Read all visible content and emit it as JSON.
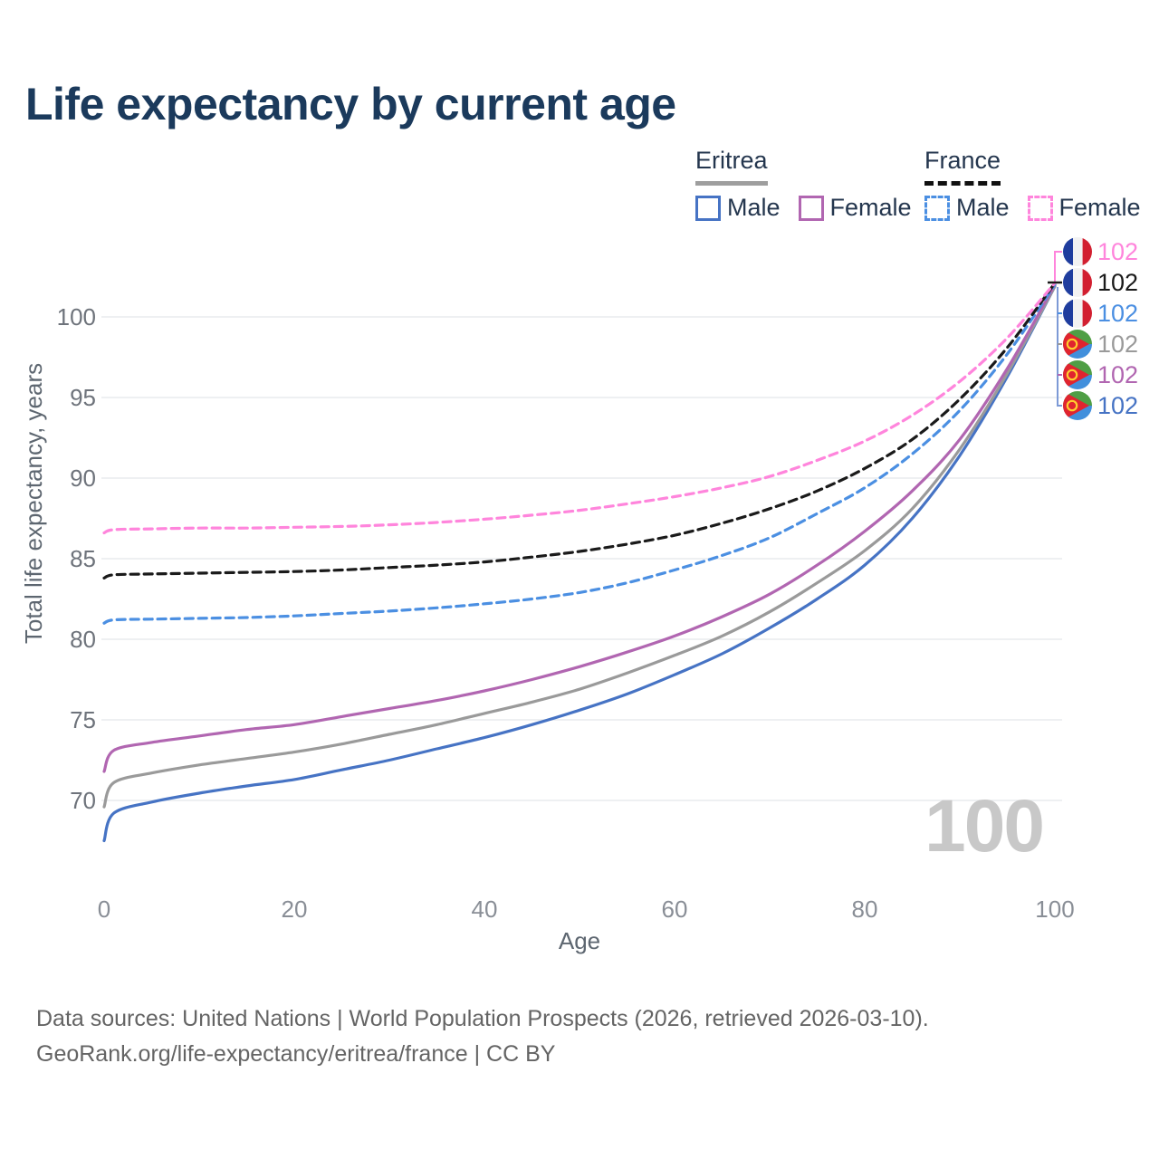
{
  "title": "Life expectancy by current age",
  "legend": {
    "groups": [
      {
        "label": "Eritrea",
        "line_style": "solid",
        "line_color": "#9e9e9e",
        "items": [
          {
            "label": "Male",
            "color": "#4673c4",
            "dash": false
          },
          {
            "label": "Female",
            "color": "#b166b1",
            "dash": false
          }
        ]
      },
      {
        "label": "France",
        "line_style": "dashed",
        "line_color": "#111111",
        "items": [
          {
            "label": "Male",
            "color": "#4b8fe2",
            "dash": true
          },
          {
            "label": "Female",
            "color": "#ff85dc",
            "dash": true
          }
        ]
      }
    ]
  },
  "watermark": "100",
  "end_labels": [
    {
      "flag": "france",
      "series": "France Female",
      "value": "102",
      "color": "#ff85dc"
    },
    {
      "flag": "france",
      "series": "France Combined",
      "value": "102",
      "color": "#1a1a1a"
    },
    {
      "flag": "france",
      "series": "France Male",
      "value": "102",
      "color": "#4b8fe2"
    },
    {
      "flag": "eritrea",
      "series": "Eritrea Combined",
      "value": "102",
      "color": "#9a9a9a"
    },
    {
      "flag": "eritrea",
      "series": "Eritrea Female",
      "value": "102",
      "color": "#b166b1"
    },
    {
      "flag": "eritrea",
      "series": "Eritrea Male",
      "value": "102",
      "color": "#4673c4"
    }
  ],
  "chart_data": {
    "type": "line",
    "title": "Life expectancy by current age",
    "xlabel": "Age",
    "ylabel": "Total life expectancy, years",
    "x": [
      0,
      1,
      5,
      10,
      15,
      20,
      25,
      30,
      35,
      40,
      45,
      50,
      55,
      60,
      65,
      70,
      75,
      80,
      85,
      90,
      95,
      100
    ],
    "series": [
      {
        "name": "Eritrea Male",
        "color": "#4673c4",
        "dash": false,
        "values": [
          67.5,
          69.2,
          69.9,
          70.45,
          70.9,
          71.3,
          71.9,
          72.5,
          73.2,
          73.9,
          74.7,
          75.6,
          76.6,
          77.8,
          79.1,
          80.7,
          82.5,
          84.6,
          87.5,
          91.4,
          96.3,
          101.9
        ]
      },
      {
        "name": "Eritrea Combined",
        "color": "#9a9a9a",
        "dash": false,
        "values": [
          69.6,
          71.1,
          71.7,
          72.2,
          72.6,
          73.0,
          73.5,
          74.1,
          74.7,
          75.4,
          76.1,
          76.9,
          77.9,
          79.0,
          80.2,
          81.7,
          83.5,
          85.5,
          88.1,
          91.8,
          96.5,
          101.9
        ]
      },
      {
        "name": "Eritrea Female",
        "color": "#b166b1",
        "dash": false,
        "values": [
          71.8,
          73.1,
          73.6,
          74.0,
          74.4,
          74.7,
          75.2,
          75.7,
          76.2,
          76.8,
          77.5,
          78.3,
          79.2,
          80.2,
          81.4,
          82.8,
          84.6,
          86.7,
          89.2,
          92.4,
          96.8,
          102.0
        ]
      },
      {
        "name": "France Male",
        "color": "#4b8fe2",
        "dash": true,
        "values": [
          81.0,
          81.2,
          81.25,
          81.3,
          81.35,
          81.45,
          81.6,
          81.75,
          81.95,
          82.2,
          82.5,
          82.9,
          83.5,
          84.3,
          85.2,
          86.3,
          87.8,
          89.4,
          91.5,
          94.2,
          97.7,
          102.0
        ]
      },
      {
        "name": "France Combined",
        "color": "#1a1a1a",
        "dash": true,
        "values": [
          83.8,
          84.0,
          84.05,
          84.1,
          84.15,
          84.2,
          84.3,
          84.45,
          84.6,
          84.8,
          85.1,
          85.45,
          85.9,
          86.45,
          87.2,
          88.1,
          89.2,
          90.6,
          92.4,
          94.9,
          98.1,
          102.1
        ]
      },
      {
        "name": "France Female",
        "color": "#ff85dc",
        "dash": true,
        "values": [
          86.6,
          86.8,
          86.85,
          86.9,
          86.9,
          86.95,
          87.0,
          87.1,
          87.25,
          87.45,
          87.7,
          88.0,
          88.4,
          88.85,
          89.4,
          90.1,
          91.1,
          92.3,
          93.9,
          96.0,
          98.7,
          102.1
        ]
      }
    ],
    "xticks": [
      0,
      20,
      40,
      60,
      80,
      100
    ],
    "yticks": [
      70,
      75,
      80,
      85,
      90,
      95,
      100
    ],
    "xlim": [
      0,
      100
    ],
    "ylim": [
      65.5,
      103
    ],
    "grid": "horizontal",
    "legend_position": "top-right"
  },
  "footer": {
    "line1": "Data sources: United Nations | World Population Prospects (2026, retrieved 2026-03-10).",
    "line2": "GeoRank.org/life-expectancy/eritrea/france | CC BY"
  }
}
